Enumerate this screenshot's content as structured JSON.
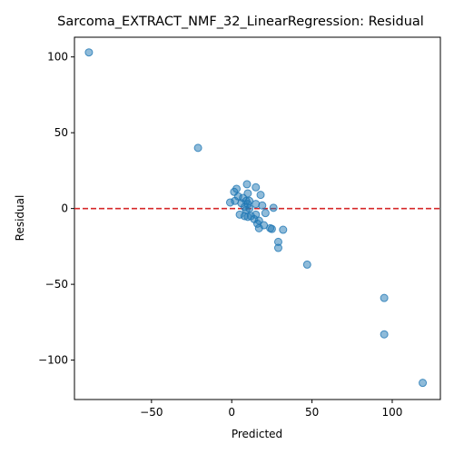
{
  "chart_data": {
    "type": "scatter",
    "title": "Sarcoma_EXTRACT_NMF_32_LinearRegression: Residual",
    "xlabel": "Predicted",
    "ylabel": "Residual",
    "xlim": [
      -98,
      130
    ],
    "ylim": [
      -126,
      113
    ],
    "xticks": [
      -50,
      0,
      50,
      100
    ],
    "yticks": [
      -100,
      -50,
      0,
      50,
      100
    ],
    "xtick_labels": [
      "−50",
      "0",
      "50",
      "100"
    ],
    "ytick_labels": [
      "−100",
      "−50",
      "0",
      "50",
      "100"
    ],
    "point_color": "#1f77b4",
    "point_alpha": 0.5,
    "reference_line": {
      "y": 0,
      "color": "#d62728",
      "style": "dashed"
    },
    "grid": false,
    "points": [
      {
        "x": -89,
        "y": 103
      },
      {
        "x": -21,
        "y": 40
      },
      {
        "x": 9.5,
        "y": 16
      },
      {
        "x": 15,
        "y": 14
      },
      {
        "x": 3,
        "y": 13
      },
      {
        "x": 1.5,
        "y": 11
      },
      {
        "x": 10,
        "y": 10
      },
      {
        "x": 18,
        "y": 9
      },
      {
        "x": 4,
        "y": 8
      },
      {
        "x": 7,
        "y": 7
      },
      {
        "x": 2,
        "y": 5
      },
      {
        "x": 9,
        "y": 5
      },
      {
        "x": 11,
        "y": 5
      },
      {
        "x": -1,
        "y": 4
      },
      {
        "x": 6,
        "y": 3.5
      },
      {
        "x": 10,
        "y": 3
      },
      {
        "x": 15,
        "y": 3
      },
      {
        "x": 19,
        "y": 2
      },
      {
        "x": 26,
        "y": 0.5
      },
      {
        "x": 8,
        "y": 1
      },
      {
        "x": 11,
        "y": 0
      },
      {
        "x": 9,
        "y": -1
      },
      {
        "x": 21,
        "y": -3
      },
      {
        "x": 5,
        "y": -4
      },
      {
        "x": 8,
        "y": -5
      },
      {
        "x": 12,
        "y": -5
      },
      {
        "x": 10,
        "y": -5.5
      },
      {
        "x": 15,
        "y": -4
      },
      {
        "x": 14,
        "y": -7
      },
      {
        "x": 17,
        "y": -8
      },
      {
        "x": 16,
        "y": -10
      },
      {
        "x": 20,
        "y": -11
      },
      {
        "x": 24,
        "y": -13
      },
      {
        "x": 25,
        "y": -13.5
      },
      {
        "x": 17,
        "y": -13
      },
      {
        "x": 32,
        "y": -14
      },
      {
        "x": 29,
        "y": -22
      },
      {
        "x": 29,
        "y": -26
      },
      {
        "x": 47,
        "y": -37
      },
      {
        "x": 95,
        "y": -59
      },
      {
        "x": 95,
        "y": -83
      },
      {
        "x": 119,
        "y": -115
      }
    ]
  }
}
